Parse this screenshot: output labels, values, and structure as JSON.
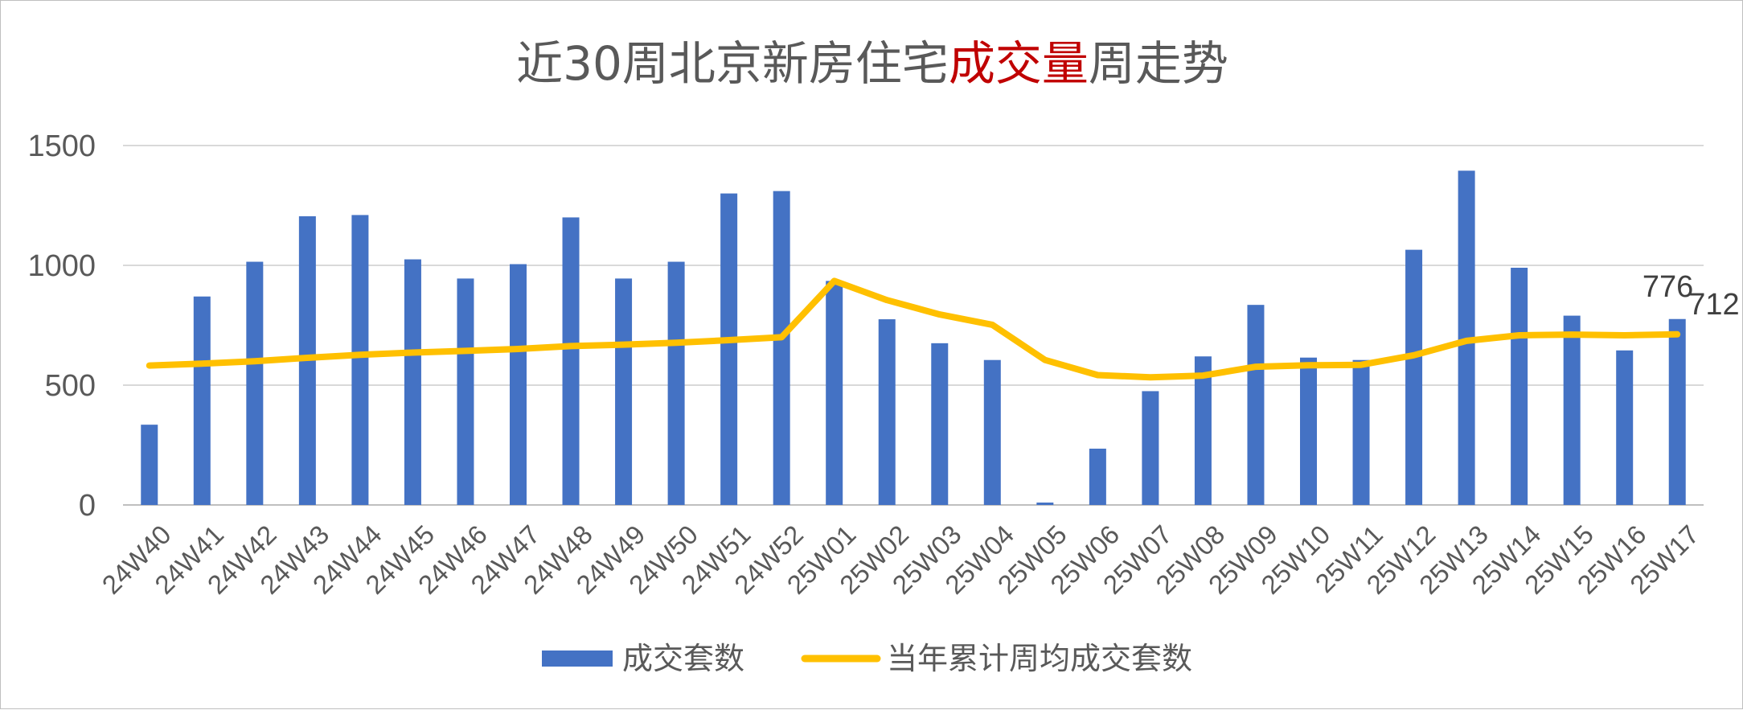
{
  "chart_data": {
    "type": "bar",
    "title_parts": [
      {
        "text": "近30周北京新房住宅",
        "color": "#595959"
      },
      {
        "text": "成交量",
        "color": "#c00000"
      },
      {
        "text": "周走势",
        "color": "#595959"
      }
    ],
    "categories": [
      "24W40",
      "24W41",
      "24W42",
      "24W43",
      "24W44",
      "24W45",
      "24W46",
      "24W47",
      "24W48",
      "24W49",
      "24W50",
      "24W51",
      "24W52",
      "25W01",
      "25W02",
      "25W03",
      "25W04",
      "25W05",
      "25W06",
      "25W07",
      "25W08",
      "25W09",
      "25W10",
      "25W11",
      "25W12",
      "25W13",
      "25W14",
      "25W15",
      "25W16",
      "25W17"
    ],
    "series": [
      {
        "name": "成交套数",
        "type": "bar",
        "color": "#4472c4",
        "values": [
          335,
          870,
          1015,
          1205,
          1210,
          1025,
          945,
          1005,
          1200,
          945,
          1015,
          1300,
          1310,
          935,
          775,
          675,
          605,
          10,
          235,
          475,
          620,
          835,
          615,
          605,
          1065,
          1395,
          990,
          790,
          645,
          776
        ]
      },
      {
        "name": "当年累计周均成交套数",
        "type": "line",
        "color": "#ffc000",
        "values": [
          582,
          590,
          600,
          614,
          627,
          636,
          643,
          651,
          663,
          669,
          677,
          688,
          700,
          935,
          855,
          795,
          752,
          605,
          542,
          533,
          540,
          577,
          583,
          585,
          625,
          685,
          708,
          711,
          708,
          712
        ]
      }
    ],
    "data_labels": [
      {
        "series": "成交套数",
        "index": 29,
        "text": "776"
      },
      {
        "series": "当年累计周均成交套数",
        "index": 29,
        "text": "712"
      }
    ],
    "yticks": [
      "0",
      "500",
      "1000",
      "1500"
    ],
    "ylim": [
      0,
      1500
    ],
    "grid": true,
    "legend_position": "bottom"
  }
}
